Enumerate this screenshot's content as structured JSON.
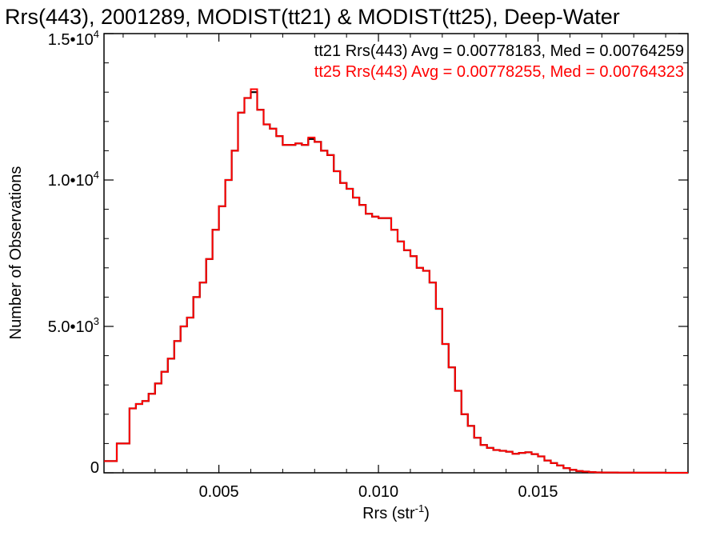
{
  "chart_data": {
    "type": "line",
    "title": "Rrs(443), 2001289, MODIST(tt21) & MODIST(tt25), Deep-Water",
    "xlabel": "Rrs (str",
    "xlabel_sup": "-1",
    "xlabel_close": ")",
    "ylabel": "Number of Observations",
    "xlim": [
      0.0014,
      0.0197
    ],
    "ylim": [
      0,
      15000
    ],
    "x_ticks": [
      {
        "value": 0.005,
        "label": "0.005"
      },
      {
        "value": 0.01,
        "label": "0.010"
      },
      {
        "value": 0.015,
        "label": "0.015"
      }
    ],
    "y_ticks": [
      {
        "value": 0,
        "base": "0",
        "exp": ""
      },
      {
        "value": 5000,
        "base": "5.0•10",
        "exp": "3"
      },
      {
        "value": 10000,
        "base": "1.0•10",
        "exp": "4"
      },
      {
        "value": 15000,
        "base": "1.5•10",
        "exp": "4"
      }
    ],
    "legend": [
      {
        "text": "tt21 Rrs(443) Avg = 0.00778183, Med = 0.00764259",
        "color": "#000000"
      },
      {
        "text": "tt25 Rrs(443) Avg = 0.00778255, Med = 0.00764323",
        "color": "#ff0000"
      }
    ],
    "series": [
      {
        "name": "tt21",
        "color": "#000000",
        "x": [
          0.0014,
          0.0018,
          0.0022,
          0.0024,
          0.0026,
          0.0028,
          0.003,
          0.0032,
          0.0034,
          0.0036,
          0.0038,
          0.004,
          0.0042,
          0.0044,
          0.0046,
          0.0048,
          0.005,
          0.0052,
          0.0054,
          0.0056,
          0.0058,
          0.006,
          0.0062,
          0.0064,
          0.0066,
          0.0068,
          0.007,
          0.0072,
          0.0074,
          0.0076,
          0.0078,
          0.008,
          0.0082,
          0.0084,
          0.0086,
          0.0088,
          0.009,
          0.0092,
          0.0094,
          0.0096,
          0.0098,
          0.01,
          0.0102,
          0.0104,
          0.0106,
          0.0108,
          0.011,
          0.0112,
          0.0114,
          0.0116,
          0.0118,
          0.012,
          0.0122,
          0.0124,
          0.0126,
          0.0128,
          0.013,
          0.0132,
          0.0134,
          0.0136,
          0.0138,
          0.014,
          0.0142,
          0.0144,
          0.0146,
          0.0148,
          0.015,
          0.0152,
          0.0154,
          0.0156,
          0.0158,
          0.016,
          0.0162,
          0.0164,
          0.0166,
          0.0168,
          0.017,
          0.0175,
          0.018,
          0.019,
          0.0197
        ],
        "y": [
          400,
          1000,
          2200,
          2350,
          2450,
          2700,
          3050,
          3450,
          3900,
          4500,
          5000,
          5300,
          6000,
          6500,
          7300,
          8300,
          9100,
          10000,
          11000,
          12300,
          12800,
          13000,
          12400,
          11900,
          11750,
          11500,
          11200,
          11200,
          11250,
          11200,
          11400,
          11300,
          11000,
          10850,
          10300,
          9900,
          9700,
          9400,
          9150,
          8850,
          8750,
          8700,
          8700,
          8300,
          7900,
          7600,
          7400,
          7000,
          6900,
          6500,
          5600,
          4400,
          3600,
          2800,
          2000,
          1600,
          1200,
          950,
          850,
          780,
          750,
          720,
          650,
          680,
          700,
          640,
          560,
          420,
          330,
          250,
          160,
          100,
          60,
          40,
          25,
          15,
          10,
          5,
          3,
          1,
          1
        ]
      },
      {
        "name": "tt25",
        "color": "#ff0000",
        "x": [
          0.0014,
          0.0018,
          0.0022,
          0.0024,
          0.0026,
          0.0028,
          0.003,
          0.0032,
          0.0034,
          0.0036,
          0.0038,
          0.004,
          0.0042,
          0.0044,
          0.0046,
          0.0048,
          0.005,
          0.0052,
          0.0054,
          0.0056,
          0.0058,
          0.006,
          0.0062,
          0.0064,
          0.0066,
          0.0068,
          0.007,
          0.0072,
          0.0074,
          0.0076,
          0.0078,
          0.008,
          0.0082,
          0.0084,
          0.0086,
          0.0088,
          0.009,
          0.0092,
          0.0094,
          0.0096,
          0.0098,
          0.01,
          0.0102,
          0.0104,
          0.0106,
          0.0108,
          0.011,
          0.0112,
          0.0114,
          0.0116,
          0.0118,
          0.012,
          0.0122,
          0.0124,
          0.0126,
          0.0128,
          0.013,
          0.0132,
          0.0134,
          0.0136,
          0.0138,
          0.014,
          0.0142,
          0.0144,
          0.0146,
          0.0148,
          0.015,
          0.0152,
          0.0154,
          0.0156,
          0.0158,
          0.016,
          0.0162,
          0.0164,
          0.0166,
          0.0168,
          0.017,
          0.0175,
          0.018,
          0.019,
          0.0197
        ],
        "y": [
          400,
          1000,
          2200,
          2350,
          2450,
          2700,
          3050,
          3450,
          3900,
          4500,
          5000,
          5300,
          6000,
          6500,
          7300,
          8300,
          9100,
          10000,
          11000,
          12300,
          12800,
          13100,
          12400,
          11900,
          11750,
          11500,
          11200,
          11200,
          11250,
          11200,
          11450,
          11300,
          11000,
          10850,
          10300,
          9900,
          9700,
          9400,
          9150,
          8850,
          8750,
          8700,
          8700,
          8300,
          7900,
          7600,
          7400,
          7000,
          6900,
          6500,
          5600,
          4400,
          3600,
          2800,
          2000,
          1600,
          1200,
          950,
          850,
          780,
          750,
          720,
          650,
          680,
          700,
          640,
          560,
          420,
          330,
          250,
          160,
          100,
          60,
          40,
          25,
          15,
          10,
          5,
          3,
          1,
          1
        ]
      }
    ]
  }
}
